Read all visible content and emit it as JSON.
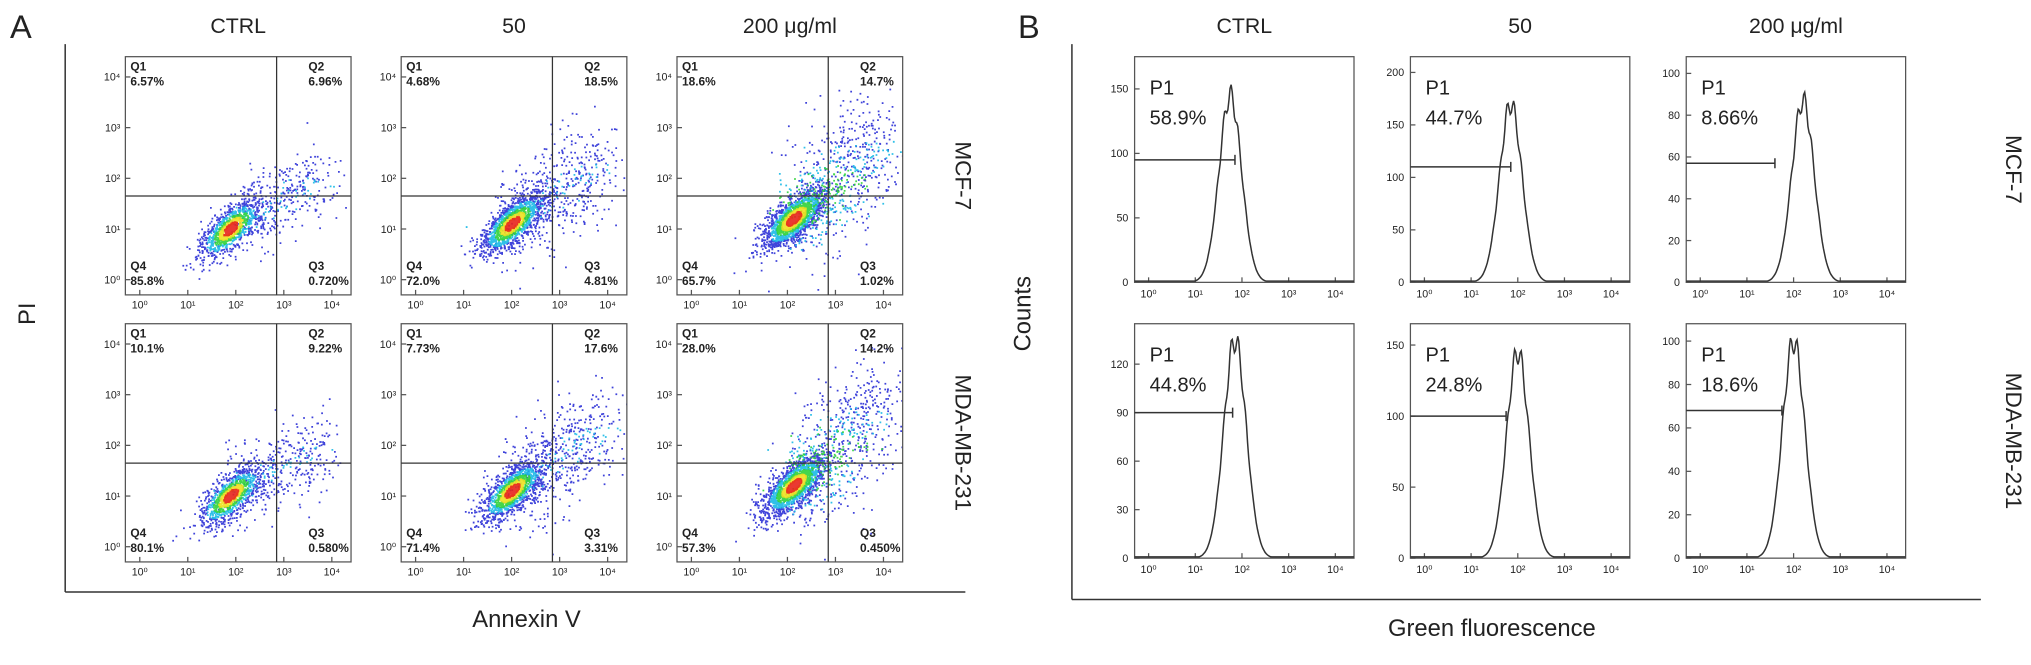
{
  "panel_a": {
    "label": "A",
    "columns": [
      "CTRL",
      "50",
      "200  μg/ml"
    ],
    "rows": [
      "MCF-7",
      "MDA-MB-231"
    ],
    "x_axis_label": "Annexin V",
    "y_axis_label": "PI",
    "ticks": [
      {
        "value": 0,
        "label": "10⁰"
      },
      {
        "value": 1,
        "label": "10¹"
      },
      {
        "value": 2,
        "label": "10²"
      },
      {
        "value": 3,
        "label": "10³"
      },
      {
        "value": 4,
        "label": "10⁴"
      }
    ],
    "xlim": [
      -0.3,
      4.4
    ],
    "ylim": [
      -0.3,
      4.4
    ],
    "plots": [
      [
        {
          "gate": [
            2.85,
            1.65
          ],
          "quadrants": [
            {
              "name": "Q1",
              "value": "6.57%"
            },
            {
              "name": "Q2",
              "value": "6.96%"
            },
            {
              "name": "Q3",
              "value": "0.720%"
            },
            {
              "name": "Q4",
              "value": "85.8%"
            }
          ]
        },
        {
          "gate": [
            2.85,
            1.65
          ],
          "quadrants": [
            {
              "name": "Q1",
              "value": "4.68%"
            },
            {
              "name": "Q2",
              "value": "18.5%"
            },
            {
              "name": "Q3",
              "value": "4.81%"
            },
            {
              "name": "Q4",
              "value": "72.0%"
            }
          ]
        },
        {
          "gate": [
            2.85,
            1.65
          ],
          "quadrants": [
            {
              "name": "Q1",
              "value": "18.6%"
            },
            {
              "name": "Q2",
              "value": "14.7%"
            },
            {
              "name": "Q3",
              "value": "1.02%"
            },
            {
              "name": "Q4",
              "value": "65.7%"
            }
          ]
        }
      ],
      [
        {
          "gate": [
            2.85,
            1.65
          ],
          "quadrants": [
            {
              "name": "Q1",
              "value": "10.1%"
            },
            {
              "name": "Q2",
              "value": "9.22%"
            },
            {
              "name": "Q3",
              "value": "0.580%"
            },
            {
              "name": "Q4",
              "value": "80.1%"
            }
          ]
        },
        {
          "gate": [
            2.85,
            1.65
          ],
          "quadrants": [
            {
              "name": "Q1",
              "value": "7.73%"
            },
            {
              "name": "Q2",
              "value": "17.6%"
            },
            {
              "name": "Q3",
              "value": "3.31%"
            },
            {
              "name": "Q4",
              "value": "71.4%"
            }
          ]
        },
        {
          "gate": [
            2.85,
            1.65
          ],
          "quadrants": [
            {
              "name": "Q1",
              "value": "28.0%"
            },
            {
              "name": "Q2",
              "value": "14.2%"
            },
            {
              "name": "Q3",
              "value": "0.450%"
            },
            {
              "name": "Q4",
              "value": "57.3%"
            }
          ]
        }
      ]
    ]
  },
  "panel_b": {
    "label": "B",
    "columns": [
      "CTRL",
      "50",
      "200  μg/ml"
    ],
    "rows": [
      "MCF-7",
      "MDA-MB-231"
    ],
    "x_axis_label": "Green fluorescence",
    "y_axis_label": "Counts",
    "xticks": [
      {
        "value": 0,
        "label": "10⁰"
      },
      {
        "value": 1,
        "label": "10¹"
      },
      {
        "value": 2,
        "label": "10²"
      },
      {
        "value": 3,
        "label": "10³"
      },
      {
        "value": 4,
        "label": "10⁴"
      }
    ],
    "xlim": [
      -0.3,
      4.4
    ],
    "plots": [
      [
        {
          "gate_name": "P1",
          "gate_value": "58.9%",
          "ylim": [
            0,
            175
          ],
          "yticks": [
            0,
            50,
            100,
            150
          ],
          "peak": 145,
          "center": 1.75,
          "gate_level": 95,
          "gate_end": 1.85
        },
        {
          "gate_name": "P1",
          "gate_value": "44.7%",
          "ylim": [
            0,
            215
          ],
          "yticks": [
            0,
            50,
            100,
            150,
            200
          ],
          "peak": 170,
          "center": 1.85,
          "gate_level": 110,
          "gate_end": 1.85
        },
        {
          "gate_name": "P1",
          "gate_value": "8.66%",
          "ylim": [
            0,
            108
          ],
          "yticks": [
            0,
            20,
            40,
            60,
            80,
            100
          ],
          "peak": 87,
          "center": 2.2,
          "gate_level": 57,
          "gate_end": 1.6
        }
      ],
      [
        {
          "gate_name": "P1",
          "gate_value": "44.8%",
          "ylim": [
            0,
            145
          ],
          "yticks": [
            0,
            30,
            60,
            90,
            120
          ],
          "peak": 135,
          "center": 1.85,
          "gate_level": 90,
          "gate_end": 1.8
        },
        {
          "gate_name": "P1",
          "gate_value": "24.8%",
          "ylim": [
            0,
            165
          ],
          "yticks": [
            0,
            50,
            100,
            150
          ],
          "peak": 145,
          "center": 2.0,
          "gate_level": 100,
          "gate_end": 1.75
        },
        {
          "gate_name": "P1",
          "gate_value": "18.6%",
          "ylim": [
            0,
            108
          ],
          "yticks": [
            0,
            20,
            40,
            60,
            80,
            100
          ],
          "peak": 100,
          "center": 2.0,
          "gate_level": 68,
          "gate_end": 1.75
        }
      ]
    ]
  }
}
